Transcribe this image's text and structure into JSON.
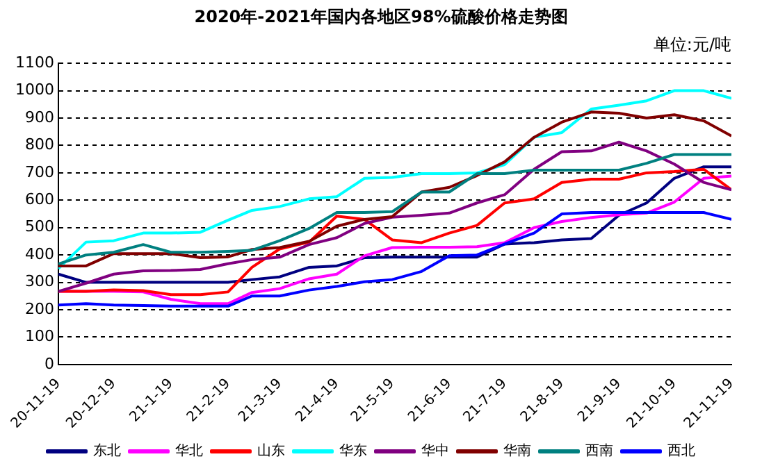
{
  "chart_data": {
    "type": "line",
    "title": "2020年-2021年国内各地区98%硫酸价格走势图",
    "annotations": [
      "单位:元/吨"
    ],
    "x": [
      "2020-11-19",
      "2020-12-04",
      "2020-12-19",
      "2021-01-04",
      "2021-01-19",
      "2021-02-04",
      "2021-02-19",
      "2021-03-04",
      "2021-03-19",
      "2021-04-04",
      "2021-04-19",
      "2021-05-04",
      "2021-05-19",
      "2021-06-04",
      "2021-06-19",
      "2021-07-04",
      "2021-07-19",
      "2021-08-04",
      "2021-08-19",
      "2021-09-04",
      "2021-09-19",
      "2021-10-04",
      "2021-10-19",
      "2021-11-04",
      "2021-11-19"
    ],
    "series": [
      {
        "name": "东北",
        "color": "#000080",
        "values": [
          330,
          300,
          300,
          300,
          300,
          300,
          300,
          310,
          320,
          355,
          360,
          390,
          392,
          392,
          392,
          392,
          440,
          445,
          455,
          460,
          545,
          590,
          680,
          722,
          722
        ]
      },
      {
        "name": "华北",
        "color": "#ff00ff",
        "values": [
          267,
          267,
          267,
          265,
          238,
          222,
          222,
          263,
          277,
          313,
          330,
          397,
          427,
          428,
          428,
          430,
          445,
          500,
          522,
          537,
          547,
          553,
          593,
          680,
          688
        ]
      },
      {
        "name": "山东",
        "color": "#ff0000",
        "values": [
          267,
          267,
          272,
          270,
          255,
          255,
          265,
          355,
          422,
          447,
          542,
          530,
          455,
          445,
          480,
          508,
          590,
          605,
          665,
          677,
          677,
          700,
          705,
          713,
          638
        ]
      },
      {
        "name": "华东",
        "color": "#00ffff",
        "values": [
          350,
          447,
          452,
          480,
          480,
          483,
          527,
          563,
          577,
          605,
          613,
          680,
          683,
          697,
          697,
          700,
          730,
          830,
          847,
          933,
          947,
          963,
          1000,
          1000,
          972
        ]
      },
      {
        "name": "华中",
        "color": "#800080",
        "values": [
          267,
          297,
          330,
          342,
          343,
          347,
          368,
          383,
          392,
          438,
          463,
          515,
          538,
          545,
          553,
          590,
          620,
          713,
          777,
          780,
          812,
          780,
          732,
          665,
          638
        ]
      },
      {
        "name": "华南",
        "color": "#800000",
        "values": [
          360,
          360,
          405,
          405,
          405,
          390,
          393,
          420,
          427,
          450,
          505,
          530,
          540,
          630,
          647,
          690,
          740,
          830,
          885,
          922,
          918,
          900,
          912,
          890,
          835
        ]
      },
      {
        "name": "西南",
        "color": "#008080",
        "values": [
          367,
          400,
          410,
          438,
          410,
          410,
          413,
          417,
          452,
          497,
          555,
          555,
          558,
          630,
          630,
          697,
          697,
          710,
          710,
          710,
          710,
          735,
          767,
          767,
          767
        ]
      },
      {
        "name": "西北",
        "color": "#0000ff",
        "values": [
          217,
          222,
          217,
          215,
          213,
          213,
          213,
          250,
          250,
          272,
          285,
          302,
          310,
          340,
          397,
          400,
          440,
          480,
          550,
          555,
          555,
          555,
          555,
          555,
          530
        ]
      }
    ],
    "xlim": [
      "2020-11-19",
      "2021-11-19"
    ],
    "xticks": [
      {
        "value": "2020-11-19",
        "label": "20-11-19"
      },
      {
        "value": "2020-12-19",
        "label": "20-12-19"
      },
      {
        "value": "2021-01-19",
        "label": "21-1-19"
      },
      {
        "value": "2021-02-19",
        "label": "21-2-19"
      },
      {
        "value": "2021-03-19",
        "label": "21-3-19"
      },
      {
        "value": "2021-04-19",
        "label": "21-4-19"
      },
      {
        "value": "2021-05-19",
        "label": "21-5-19"
      },
      {
        "value": "2021-06-19",
        "label": "21-6-19"
      },
      {
        "value": "2021-07-19",
        "label": "21-7-19"
      },
      {
        "value": "2021-08-19",
        "label": "21-8-19"
      },
      {
        "value": "2021-09-19",
        "label": "21-9-19"
      },
      {
        "value": "2021-10-19",
        "label": "21-10-19"
      },
      {
        "value": "2021-11-19",
        "label": "21-11-19"
      }
    ],
    "ylim": [
      0,
      1100
    ],
    "yticks": [
      0,
      100,
      200,
      300,
      400,
      500,
      600,
      700,
      800,
      900,
      1000,
      1100
    ],
    "grid": "y",
    "legend": "bottom",
    "marker": "none",
    "line_style": "solid"
  }
}
